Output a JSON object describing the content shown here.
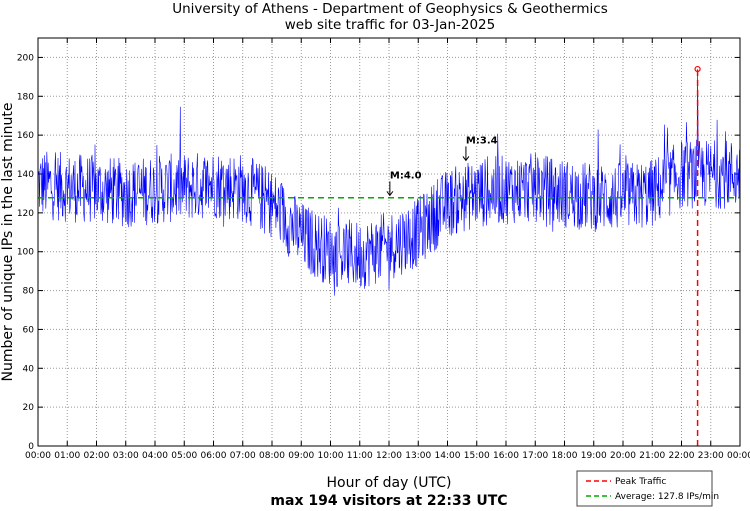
{
  "chart_data": {
    "type": "line",
    "title": "University of Athens - Department of Geophysics & Geothermics",
    "subtitle": "web site traffic for 03-Jan-2025",
    "xlabel": "Hour of day (UTC)",
    "xlabel2": "max 194 visitors at 22:33 UTC",
    "ylabel": "Number of unique IPs in the last minute",
    "xlim_hours": [
      0,
      24
    ],
    "ylim": [
      0,
      210
    ],
    "grid": true,
    "x_ticks": [
      "00:00",
      "01:00",
      "02:00",
      "03:00",
      "04:00",
      "05:00",
      "06:00",
      "07:00",
      "08:00",
      "09:00",
      "10:00",
      "11:00",
      "12:00",
      "13:00",
      "14:00",
      "15:00",
      "16:00",
      "17:00",
      "18:00",
      "19:00",
      "20:00",
      "21:00",
      "22:00",
      "23:00",
      "00:00"
    ],
    "y_ticks": [
      0,
      20,
      40,
      60,
      80,
      100,
      120,
      140,
      160,
      180,
      200
    ],
    "series": [
      {
        "name": "Unique IPs per minute",
        "color": "#0000ff",
        "hourly_baseline": [
          135,
          133,
          132,
          130,
          132,
          133,
          135,
          133,
          125,
          108,
          100,
          98,
          103,
          110,
          125,
          130,
          132,
          133,
          130,
          128,
          128,
          130,
          140,
          140
        ],
        "noise_amplitude": 18
      }
    ],
    "peak": {
      "label": "Peak Traffic",
      "time": "22:33",
      "hour": 22.55,
      "value": 194,
      "color": "#ff0000"
    },
    "average": {
      "label": "Average: 127.8 IPs/min",
      "value": 127.8,
      "color": "#00aa00"
    },
    "annotations": [
      {
        "text": "M:4.0",
        "hour": 12.03,
        "value": 129
      },
      {
        "text": "M:3.4",
        "hour": 14.63,
        "value": 147
      }
    ],
    "legend_position": "bottom-right"
  }
}
